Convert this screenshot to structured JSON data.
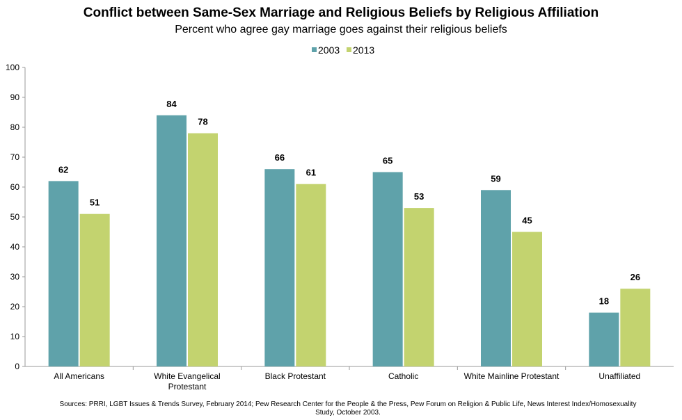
{
  "chart_data": {
    "type": "bar",
    "title": "Conflict between Same-Sex Marriage and Religious Beliefs by Religious Affiliation",
    "subtitle": "Percent who agree gay marriage goes against their religious beliefs",
    "categories": [
      [
        "All Americans"
      ],
      [
        "White Evangelical",
        "Protestant"
      ],
      [
        "Black Protestant"
      ],
      [
        "Catholic"
      ],
      [
        "White Mainline Protestant"
      ],
      [
        "Unaffiliated"
      ]
    ],
    "series": [
      {
        "name": "2003",
        "color": "#5fa2aa",
        "values": [
          62,
          84,
          66,
          65,
          59,
          18
        ]
      },
      {
        "name": "2013",
        "color": "#c3d36f",
        "values": [
          51,
          78,
          61,
          53,
          45,
          26
        ]
      }
    ],
    "ylim": [
      0,
      100
    ],
    "yticks": [
      0,
      10,
      20,
      30,
      40,
      50,
      60,
      70,
      80,
      90,
      100
    ],
    "grid": false,
    "legend": "top-center",
    "source": "Sources: PRRI, LGBT Issues & Trends Survey, February 2014; Pew Research Center for the People & the Press, Pew Forum on Religion & Public Life, News Interest Index/Homosexuality Study, October 2003."
  }
}
